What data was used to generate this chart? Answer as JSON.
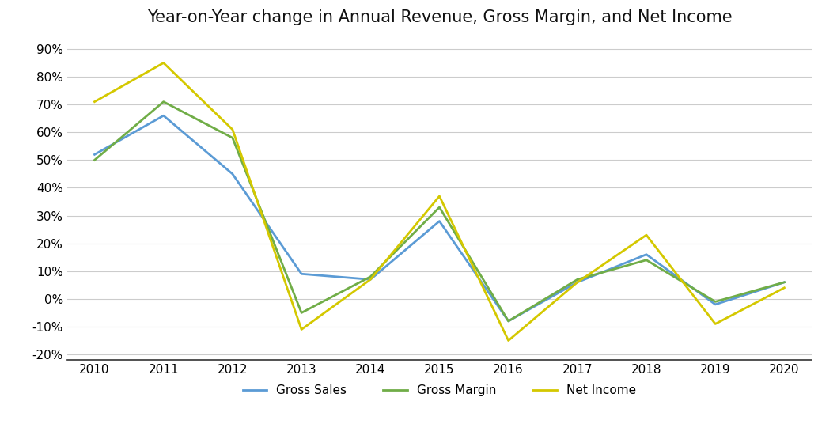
{
  "title": "Year-on-Year change in Annual Revenue, Gross Margin, and Net Income",
  "years": [
    2010,
    2011,
    2012,
    2013,
    2014,
    2015,
    2016,
    2017,
    2018,
    2019,
    2020
  ],
  "gross_sales": [
    0.52,
    0.66,
    0.45,
    0.09,
    0.07,
    0.28,
    -0.08,
    0.06,
    0.16,
    -0.02,
    0.06
  ],
  "gross_margin": [
    0.5,
    0.71,
    0.58,
    -0.05,
    0.08,
    0.33,
    -0.08,
    0.07,
    0.14,
    -0.01,
    0.06
  ],
  "net_income": [
    0.71,
    0.85,
    0.61,
    -0.11,
    0.07,
    0.37,
    -0.15,
    0.06,
    0.23,
    -0.09,
    0.04
  ],
  "gross_sales_color": "#5B9BD5",
  "gross_margin_color": "#70AD47",
  "net_income_color": "#D4C800",
  "gross_sales_label": "Gross Sales",
  "gross_margin_label": "Gross Margin",
  "net_income_label": "Net Income",
  "ylim": [
    -0.22,
    0.95
  ],
  "yticks": [
    -0.2,
    -0.1,
    0.0,
    0.1,
    0.2,
    0.3,
    0.4,
    0.5,
    0.6,
    0.7,
    0.8,
    0.9
  ],
  "background_color": "#FFFFFF",
  "grid_color": "#CCCCCC",
  "title_fontsize": 15,
  "line_width": 2.0,
  "tick_fontsize": 11,
  "legend_fontsize": 11
}
